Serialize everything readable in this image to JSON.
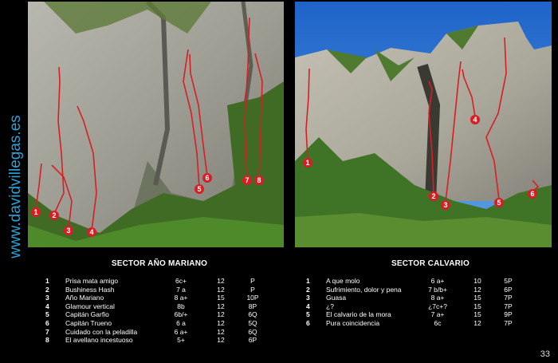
{
  "website": "www.davidvillegas.es",
  "page_number": "33",
  "colors": {
    "route": "#d81e24",
    "website": "#2aa3d6"
  },
  "sector_ano_mariano": {
    "title": "SECTOR AÑO MARIANO",
    "markers": [
      "1",
      "2",
      "3",
      "4",
      "5",
      "6",
      "7",
      "8"
    ],
    "routes": [
      {
        "n": "1",
        "name": "Prisa mata amigo",
        "grade": "6c+",
        "length": "12",
        "gear": "P"
      },
      {
        "n": "2",
        "name": "Bushiness Hash",
        "grade": "7 a",
        "length": "12",
        "gear": "P"
      },
      {
        "n": "3",
        "name": "Año Mariano",
        "grade": "8 a+",
        "length": "15",
        "gear": "10P"
      },
      {
        "n": "4",
        "name": "Glamour vertical",
        "grade": "8b",
        "length": "12",
        "gear": "8P"
      },
      {
        "n": "5",
        "name": "Capitán Garfio",
        "grade": "6b/+",
        "length": "12",
        "gear": "6Q"
      },
      {
        "n": "6",
        "name": "Capitán Trueno",
        "grade": "6 a",
        "length": "12",
        "gear": "5Q"
      },
      {
        "n": "7",
        "name": "Cuidado con la peladilla",
        "grade": "6 a+",
        "length": "12",
        "gear": "6Q"
      },
      {
        "n": "8",
        "name": "El avellano incestuoso",
        "grade": "5+",
        "length": "12",
        "gear": "6P"
      }
    ]
  },
  "sector_calvario": {
    "title": "SECTOR CALVARIO",
    "markers": [
      "1",
      "2",
      "3",
      "4",
      "5",
      "6"
    ],
    "routes": [
      {
        "n": "1",
        "name": "A que molo",
        "grade": "6 a+",
        "length": "10",
        "gear": "5P"
      },
      {
        "n": "2",
        "name": "Sufrimiento, dolor y pena",
        "grade": "7 b/b+",
        "length": "12",
        "gear": "6P"
      },
      {
        "n": "3",
        "name": "Guasa",
        "grade": "8 a+",
        "length": "15",
        "gear": "7P"
      },
      {
        "n": "4",
        "name": "¿?",
        "grade": "¿7c+?",
        "length": "15",
        "gear": "7P"
      },
      {
        "n": "5",
        "name": "El calvario de la mora",
        "grade": "7 a+",
        "length": "15",
        "gear": "9P"
      },
      {
        "n": "6",
        "name": "Pura coincidencia",
        "grade": "6c",
        "length": "12",
        "gear": "7P"
      }
    ]
  }
}
